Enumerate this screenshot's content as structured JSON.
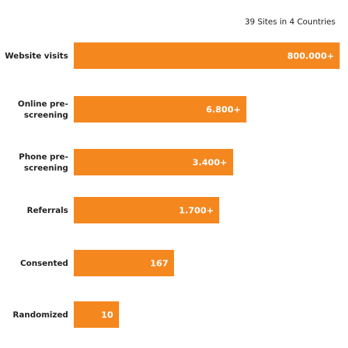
{
  "chart_data": {
    "type": "bar",
    "orientation": "horizontal",
    "subtitle": "39 Sites in 4 Countries",
    "categories": [
      "Website visits",
      "Online pre-screening",
      "Phone pre-screening",
      "Referrals",
      "Consented",
      "Randomized"
    ],
    "values": [
      800000,
      6800,
      3400,
      1700,
      167,
      10
    ],
    "value_labels": [
      "800.000+",
      "6.800+",
      "3.400+",
      "1.700+",
      "167",
      "10"
    ],
    "color": "#f5871f",
    "log_scale": true
  }
}
